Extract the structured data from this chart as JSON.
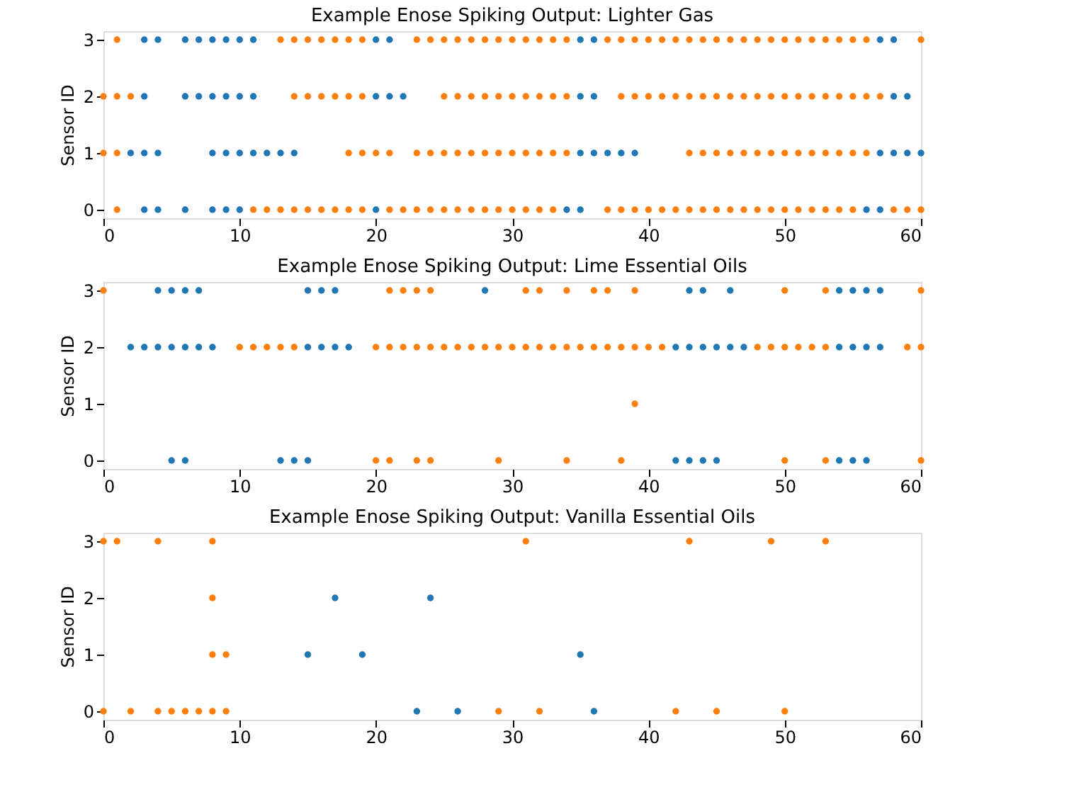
{
  "chart_data": [
    {
      "type": "scatter",
      "title": "Example Enose Spiking Output: Lighter Gas",
      "ylabel": "Sensor ID",
      "xlim": [
        0,
        60
      ],
      "xticks": [
        0,
        10,
        20,
        30,
        40,
        50,
        60
      ],
      "ylim": [
        -0.15,
        3.15
      ],
      "yticks": [
        0,
        1,
        2,
        3
      ],
      "grid": false,
      "legend": false,
      "marker": "circle",
      "series": [
        {
          "color": "#1f77b4",
          "x": [
            3,
            4,
            6,
            7,
            8,
            9,
            10,
            11,
            20,
            21,
            35,
            36,
            57,
            58
          ],
          "values": [
            3,
            3,
            3,
            3,
            3,
            3,
            3,
            3,
            3,
            3,
            3,
            3,
            3,
            3
          ]
        },
        {
          "color": "#1f77b4",
          "x": [
            3,
            6,
            7,
            8,
            9,
            10,
            11,
            20,
            21,
            22,
            35,
            36,
            58,
            59
          ],
          "values": [
            2,
            2,
            2,
            2,
            2,
            2,
            2,
            2,
            2,
            2,
            2,
            2,
            2,
            2
          ]
        },
        {
          "color": "#1f77b4",
          "x": [
            2,
            3,
            4,
            8,
            9,
            10,
            11,
            12,
            13,
            14,
            35,
            36,
            37,
            38,
            39,
            57,
            58,
            59,
            60
          ],
          "values": [
            1,
            1,
            1,
            1,
            1,
            1,
            1,
            1,
            1,
            1,
            1,
            1,
            1,
            1,
            1,
            1,
            1,
            1,
            1
          ]
        },
        {
          "color": "#1f77b4",
          "x": [
            3,
            4,
            6,
            8,
            9,
            10,
            20,
            34,
            35,
            56,
            57
          ],
          "values": [
            0,
            0,
            0,
            0,
            0,
            0,
            0,
            0,
            0,
            0,
            0
          ]
        },
        {
          "color": "#ff7f0e",
          "x": [
            1,
            13,
            14,
            15,
            16,
            17,
            18,
            19,
            23,
            24,
            25,
            26,
            27,
            28,
            29,
            30,
            31,
            32,
            33,
            34,
            37,
            38,
            39,
            40,
            41,
            42,
            43,
            44,
            45,
            46,
            47,
            48,
            49,
            50,
            51,
            52,
            53,
            54,
            55,
            56,
            60
          ],
          "values": [
            3,
            3,
            3,
            3,
            3,
            3,
            3,
            3,
            3,
            3,
            3,
            3,
            3,
            3,
            3,
            3,
            3,
            3,
            3,
            3,
            3,
            3,
            3,
            3,
            3,
            3,
            3,
            3,
            3,
            3,
            3,
            3,
            3,
            3,
            3,
            3,
            3,
            3,
            3,
            3,
            3
          ]
        },
        {
          "color": "#ff7f0e",
          "x": [
            0,
            1,
            2,
            14,
            15,
            16,
            17,
            18,
            19,
            25,
            26,
            27,
            28,
            29,
            30,
            31,
            32,
            33,
            34,
            38,
            39,
            40,
            41,
            42,
            43,
            44,
            45,
            46,
            47,
            48,
            49,
            50,
            51,
            52,
            53,
            54,
            55,
            56,
            57
          ],
          "values": [
            2,
            2,
            2,
            2,
            2,
            2,
            2,
            2,
            2,
            2,
            2,
            2,
            2,
            2,
            2,
            2,
            2,
            2,
            2,
            2,
            2,
            2,
            2,
            2,
            2,
            2,
            2,
            2,
            2,
            2,
            2,
            2,
            2,
            2,
            2,
            2,
            2,
            2,
            2
          ]
        },
        {
          "color": "#ff7f0e",
          "x": [
            0,
            1,
            18,
            19,
            20,
            21,
            23,
            24,
            25,
            26,
            27,
            28,
            29,
            30,
            31,
            32,
            33,
            34,
            43,
            44,
            45,
            46,
            47,
            48,
            49,
            50,
            51,
            52,
            53,
            54,
            55,
            56
          ],
          "values": [
            1,
            1,
            1,
            1,
            1,
            1,
            1,
            1,
            1,
            1,
            1,
            1,
            1,
            1,
            1,
            1,
            1,
            1,
            1,
            1,
            1,
            1,
            1,
            1,
            1,
            1,
            1,
            1,
            1,
            1,
            1,
            1
          ]
        },
        {
          "color": "#ff7f0e",
          "x": [
            1,
            11,
            12,
            13,
            14,
            15,
            16,
            17,
            18,
            19,
            21,
            22,
            23,
            24,
            25,
            26,
            27,
            28,
            29,
            30,
            31,
            32,
            33,
            37,
            38,
            39,
            40,
            41,
            42,
            43,
            44,
            45,
            46,
            47,
            48,
            49,
            50,
            51,
            52,
            53,
            54,
            55,
            58,
            59,
            60
          ],
          "values": [
            0,
            0,
            0,
            0,
            0,
            0,
            0,
            0,
            0,
            0,
            0,
            0,
            0,
            0,
            0,
            0,
            0,
            0,
            0,
            0,
            0,
            0,
            0,
            0,
            0,
            0,
            0,
            0,
            0,
            0,
            0,
            0,
            0,
            0,
            0,
            0,
            0,
            0,
            0,
            0,
            0,
            0,
            0,
            0,
            0
          ]
        }
      ]
    },
    {
      "type": "scatter",
      "title": "Example Enose Spiking Output: Lime Essential Oils",
      "ylabel": "Sensor ID",
      "xlim": [
        0,
        60
      ],
      "xticks": [
        0,
        10,
        20,
        30,
        40,
        50,
        60
      ],
      "ylim": [
        -0.15,
        3.15
      ],
      "yticks": [
        0,
        1,
        2,
        3
      ],
      "grid": false,
      "legend": false,
      "marker": "circle",
      "series": [
        {
          "color": "#1f77b4",
          "x": [
            4,
            5,
            6,
            7,
            15,
            16,
            17,
            28,
            43,
            44,
            46,
            54,
            55,
            56,
            57
          ],
          "values": [
            3,
            3,
            3,
            3,
            3,
            3,
            3,
            3,
            3,
            3,
            3,
            3,
            3,
            3,
            3
          ]
        },
        {
          "color": "#1f77b4",
          "x": [
            2,
            3,
            4,
            5,
            6,
            7,
            8,
            15,
            16,
            17,
            18,
            42,
            43,
            44,
            45,
            46,
            47,
            54,
            55,
            56,
            57
          ],
          "values": [
            2,
            2,
            2,
            2,
            2,
            2,
            2,
            2,
            2,
            2,
            2,
            2,
            2,
            2,
            2,
            2,
            2,
            2,
            2,
            2,
            2
          ]
        },
        {
          "color": "#1f77b4",
          "x": [
            5,
            6,
            13,
            14,
            15,
            42,
            43,
            44,
            45,
            54,
            55,
            56
          ],
          "values": [
            0,
            0,
            0,
            0,
            0,
            0,
            0,
            0,
            0,
            0,
            0,
            0
          ]
        },
        {
          "color": "#ff7f0e",
          "x": [
            0,
            21,
            22,
            23,
            24,
            31,
            32,
            34,
            36,
            37,
            39,
            50,
            53,
            60
          ],
          "values": [
            3,
            3,
            3,
            3,
            3,
            3,
            3,
            3,
            3,
            3,
            3,
            3,
            3,
            3
          ]
        },
        {
          "color": "#ff7f0e",
          "x": [
            10,
            11,
            12,
            13,
            14,
            20,
            21,
            22,
            23,
            24,
            25,
            26,
            27,
            28,
            29,
            30,
            31,
            32,
            33,
            34,
            35,
            36,
            37,
            38,
            39,
            40,
            41,
            48,
            49,
            50,
            51,
            52,
            53,
            59,
            60
          ],
          "values": [
            2,
            2,
            2,
            2,
            2,
            2,
            2,
            2,
            2,
            2,
            2,
            2,
            2,
            2,
            2,
            2,
            2,
            2,
            2,
            2,
            2,
            2,
            2,
            2,
            2,
            2,
            2,
            2,
            2,
            2,
            2,
            2,
            2,
            2,
            2
          ]
        },
        {
          "color": "#ff7f0e",
          "x": [
            39
          ],
          "values": [
            1
          ]
        },
        {
          "color": "#ff7f0e",
          "x": [
            20,
            21,
            23,
            24,
            29,
            34,
            38,
            50,
            53,
            60
          ],
          "values": [
            0,
            0,
            0,
            0,
            0,
            0,
            0,
            0,
            0,
            0
          ]
        }
      ]
    },
    {
      "type": "scatter",
      "title": "Example Enose Spiking Output: Vanilla Essential Oils",
      "ylabel": "Sensor ID",
      "xlim": [
        0,
        60
      ],
      "xticks": [
        0,
        10,
        20,
        30,
        40,
        50,
        60
      ],
      "ylim": [
        -0.15,
        3.15
      ],
      "yticks": [
        0,
        1,
        2,
        3
      ],
      "grid": false,
      "legend": false,
      "marker": "circle",
      "series": [
        {
          "color": "#1f77b4",
          "x": [
            17,
            24
          ],
          "values": [
            2,
            2
          ]
        },
        {
          "color": "#1f77b4",
          "x": [
            15,
            19,
            35
          ],
          "values": [
            1,
            1,
            1
          ]
        },
        {
          "color": "#1f77b4",
          "x": [
            23,
            26,
            36
          ],
          "values": [
            0,
            0,
            0
          ]
        },
        {
          "color": "#ff7f0e",
          "x": [
            0,
            1,
            4,
            8,
            31,
            43,
            49,
            53
          ],
          "values": [
            3,
            3,
            3,
            3,
            3,
            3,
            3,
            3
          ]
        },
        {
          "color": "#ff7f0e",
          "x": [
            8
          ],
          "values": [
            2
          ]
        },
        {
          "color": "#ff7f0e",
          "x": [
            8,
            9
          ],
          "values": [
            1,
            1
          ]
        },
        {
          "color": "#ff7f0e",
          "x": [
            0,
            2,
            4,
            5,
            6,
            7,
            8,
            9,
            29,
            32,
            42,
            45,
            50
          ],
          "values": [
            0,
            0,
            0,
            0,
            0,
            0,
            0,
            0,
            0,
            0,
            0,
            0,
            0
          ]
        }
      ]
    }
  ]
}
